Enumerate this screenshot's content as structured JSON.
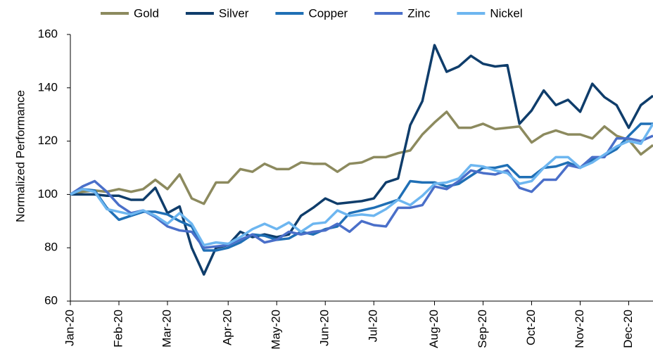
{
  "chart_data": {
    "type": "line",
    "y_label": "Normalized Performance",
    "categories": [
      "Jan-20",
      null,
      null,
      null,
      "Feb-20",
      null,
      null,
      null,
      "Mar-20",
      null,
      null,
      null,
      null,
      "Apr-20",
      null,
      null,
      null,
      "May-20",
      null,
      null,
      null,
      "Jun-20",
      null,
      null,
      null,
      "Jul-20",
      null,
      null,
      null,
      null,
      "Aug-20",
      null,
      null,
      null,
      "Sep-20",
      null,
      null,
      null,
      "Oct-20",
      null,
      null,
      null,
      "Nov-20",
      null,
      null,
      null,
      "Dec-20",
      null,
      null
    ],
    "series": [
      {
        "name": "Gold",
        "color": "#8c8a5e",
        "values": [
          100,
          101,
          101.5,
          101,
          102,
          101,
          102,
          105.5,
          102,
          107.5,
          98.5,
          96.5,
          104.5,
          104.5,
          109.5,
          108.5,
          111.5,
          109.5,
          109.5,
          112,
          111.5,
          111.5,
          108.5,
          111.5,
          112,
          114,
          114,
          115.5,
          116.5,
          122.5,
          127,
          131,
          125,
          125,
          126.5,
          124.5,
          125,
          125.5,
          119.5,
          122.5,
          124,
          122.5,
          122.5,
          121,
          125.5,
          122,
          120.5,
          115,
          118.5
        ]
      },
      {
        "name": "Silver",
        "color": "#0f3d6b",
        "values": [
          100,
          100,
          100,
          99.5,
          99.5,
          98,
          98,
          102.5,
          93,
          95.5,
          80,
          70,
          80,
          81,
          86,
          84,
          85,
          84,
          85,
          92,
          95,
          98.5,
          96.5,
          97,
          97.5,
          98.5,
          104.5,
          106,
          126,
          135,
          156,
          146,
          148,
          152,
          149,
          148,
          148.5,
          126.5,
          131.5,
          139,
          133.5,
          135.5,
          131,
          141.5,
          136.5,
          133.5,
          125,
          133.5,
          137
        ]
      },
      {
        "name": "Copper",
        "color": "#1f6fb5",
        "values": [
          100,
          102,
          101.5,
          95,
          90.5,
          92,
          93.5,
          93.5,
          92.5,
          90,
          88,
          79,
          79,
          80,
          82,
          85,
          84.5,
          83,
          83.5,
          86,
          85,
          87,
          88,
          93,
          94,
          95,
          96.5,
          98,
          105,
          104.5,
          104.5,
          103,
          104,
          107,
          110,
          110,
          111,
          106.5,
          106.5,
          110,
          110.5,
          112,
          110,
          113,
          114.5,
          117,
          122,
          126.5,
          126.5
        ]
      },
      {
        "name": "Zinc",
        "color": "#4a6fc9",
        "values": [
          100,
          103,
          105,
          101,
          96,
          93,
          94,
          91.5,
          88,
          86.5,
          86,
          80,
          80.5,
          81,
          83,
          85,
          82,
          83,
          86,
          85,
          86,
          86.5,
          89,
          86,
          90,
          88.5,
          88,
          95,
          95,
          96,
          103,
          102,
          105,
          109,
          108,
          107.5,
          109,
          102.5,
          101,
          105.5,
          105.5,
          111,
          110,
          114,
          114,
          121,
          121,
          120,
          122
        ]
      },
      {
        "name": "Nickel",
        "color": "#6db6f0",
        "values": [
          100,
          102,
          101,
          94.5,
          93.5,
          92.5,
          94,
          92,
          89,
          93,
          89,
          81,
          82,
          81.5,
          84,
          87,
          89,
          87,
          89.5,
          86,
          89,
          89.5,
          94,
          92,
          92.5,
          92,
          94.5,
          98,
          96,
          99.5,
          104,
          104.5,
          106,
          111,
          110.5,
          109,
          108,
          104,
          105,
          110,
          114,
          114,
          110,
          112,
          115,
          118,
          120,
          119,
          126.5
        ]
      }
    ],
    "ylim": [
      60,
      160
    ],
    "yticks": [
      60,
      80,
      100,
      120,
      140,
      160
    ],
    "grid": false,
    "legend": "top"
  }
}
